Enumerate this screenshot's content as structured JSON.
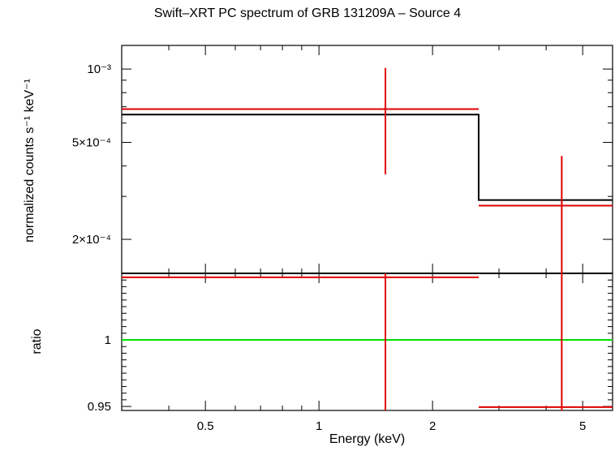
{
  "title": "Swift–XRT PC spectrum of GRB 131209A – Source 4",
  "colors": {
    "data": "#e00000",
    "model": "#000000",
    "unity": "#00e000",
    "axes": "#000000"
  },
  "chart_data": [
    {
      "type": "line",
      "panel": "spectrum",
      "ylabel": "normalized counts s⁻¹ keV⁻¹",
      "yscale": "log",
      "xscale": "log",
      "xlim": [
        0.3,
        6.0
      ],
      "ylim": [
        0.000145,
        0.00125
      ],
      "yticks": [
        {
          "value": 0.001,
          "label": "10⁻³"
        },
        {
          "value": 0.0005,
          "label": "5×10⁻⁴"
        },
        {
          "value": 0.0002,
          "label": "2×10⁻⁴"
        }
      ],
      "series": [
        {
          "role": "data",
          "points": [
            {
              "x": 1.5,
              "xlo": 0.3,
              "xhi": 2.65,
              "y": 0.000685,
              "ylo": 0.00037,
              "yhi": 0.00101
            },
            {
              "x": 4.4,
              "xlo": 2.65,
              "xhi": 6.0,
              "y": 0.000275,
              "ylo": 0.000145,
              "yhi": 0.00044
            }
          ]
        },
        {
          "role": "model",
          "steps": [
            {
              "xlo": 0.3,
              "xhi": 2.65,
              "y": 0.00065
            },
            {
              "xlo": 2.65,
              "xhi": 6.0,
              "y": 0.00029
            }
          ]
        }
      ]
    },
    {
      "type": "line",
      "panel": "ratio",
      "ylabel": "ratio",
      "xlabel": "Energy (keV)",
      "xscale": "log",
      "xlim": [
        0.3,
        6.0
      ],
      "ylim": [
        0.947,
        1.05
      ],
      "xticks": [
        {
          "value": 0.5,
          "label": "0.5"
        },
        {
          "value": 1,
          "label": "1"
        },
        {
          "value": 2,
          "label": "2"
        },
        {
          "value": 5,
          "label": "5"
        }
      ],
      "yticks": [
        {
          "value": 1,
          "label": "1"
        },
        {
          "value": 0.95,
          "label": "0.95"
        }
      ],
      "unity": 1,
      "series": [
        {
          "role": "data",
          "points": [
            {
              "x": 1.5,
              "xlo": 0.3,
              "xhi": 2.65,
              "y": 1.047,
              "ylo": 0.947,
              "yhi": 1.05
            },
            {
              "x": 4.4,
              "xlo": 2.65,
              "xhi": 6.0,
              "y": 0.9495,
              "ylo": 0.947,
              "yhi": 1.05
            }
          ]
        }
      ]
    }
  ]
}
